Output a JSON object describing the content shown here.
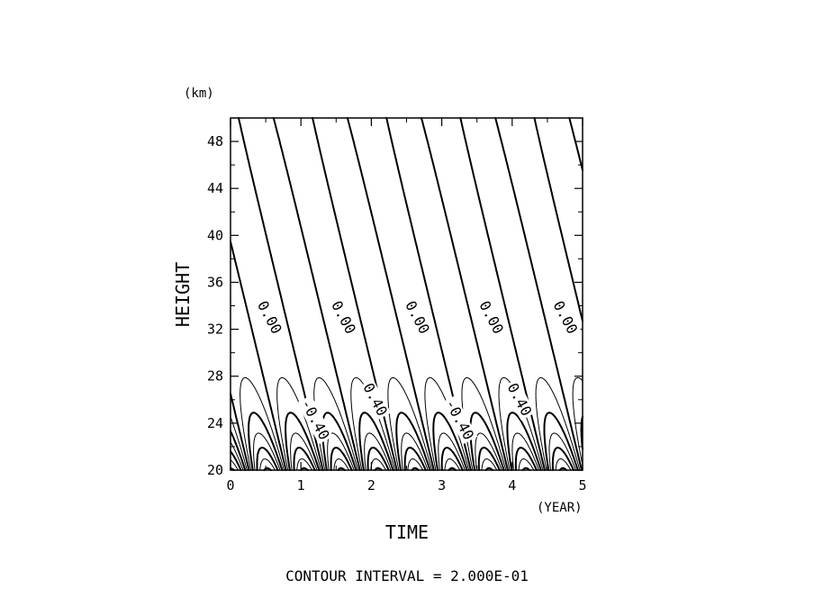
{
  "chart_data": {
    "type": "contour",
    "title": "",
    "xlabel": "TIME",
    "ylabel": "HEIGHT",
    "x_unit": "(YEAR)",
    "y_unit": "(km)",
    "xlim": [
      0,
      5
    ],
    "ylim": [
      20,
      50
    ],
    "x_major_ticks": [
      0,
      1,
      2,
      3,
      4,
      5
    ],
    "y_major_ticks": [
      20,
      24,
      28,
      32,
      36,
      40,
      44,
      48
    ],
    "contour_interval_text": "CONTOUR INTERVAL = 2.000E-01",
    "contour_interval": 0.2,
    "negative_contours_dashed": true,
    "field_description": "downward propagating oscillation with period about 1.05 years; amplitude largest near 20–24 km and decaying above about 34 km",
    "period_years": 1.05,
    "contour_labels": [
      {
        "text": "0.00",
        "x": 0.55,
        "y": 33.0
      },
      {
        "text": "0.00",
        "x": 1.6,
        "y": 33.0
      },
      {
        "text": "0.00",
        "x": 2.65,
        "y": 33.0
      },
      {
        "text": "0.00",
        "x": 3.7,
        "y": 33.0
      },
      {
        "text": "0.00",
        "x": 4.75,
        "y": 33.0
      },
      {
        "text": "-0.40",
        "x": 1.2,
        "y": 24.3
      },
      {
        "text": "0.40",
        "x": 2.05,
        "y": 26.0
      },
      {
        "text": "-0.40",
        "x": 3.25,
        "y": 24.3
      },
      {
        "text": "0.40",
        "x": 4.1,
        "y": 26.0
      }
    ]
  }
}
